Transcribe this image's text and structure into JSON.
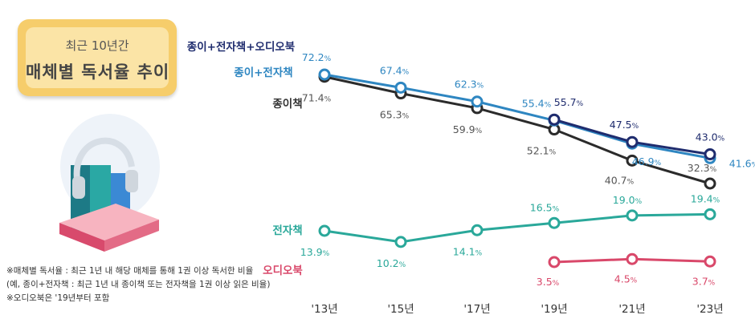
{
  "title": {
    "line1": "최근 10년간",
    "line2": "매체별 독서율 추이"
  },
  "footnotes": [
    "※매체별 독서율 : 최근 1년 내 해당 매체를 통해 1권 이상 독서한 비율",
    "(예, 종이+전자책 : 최근 1년 내 종이책 또는 전자책을 1권 이상 읽은 비율)",
    "※오디오북은 '19년부터 포함"
  ],
  "colors": {
    "paper_ebook_audio": "#1f2c6e",
    "paper_ebook": "#2e86c1",
    "paper": "#2b2b2b",
    "ebook": "#2aa89a",
    "audiobook": "#d9486a"
  },
  "chart_data": {
    "type": "line",
    "title": "매체별 독서율 추이",
    "categories": [
      "'13년",
      "'15년",
      "'17년",
      "'19년",
      "'21년",
      "'23년"
    ],
    "unit": "%",
    "series": [
      {
        "name": "종이+전자책+오디오북",
        "key": "paper_ebook_audio",
        "values": [
          null,
          null,
          null,
          55.7,
          47.5,
          43.0
        ],
        "labels": [
          "",
          "",
          "",
          "55.7",
          "47.5",
          "43.0"
        ]
      },
      {
        "name": "종이+전자책",
        "key": "paper_ebook",
        "values": [
          72.2,
          67.4,
          62.3,
          55.4,
          46.9,
          41.6
        ],
        "labels": [
          "72.2",
          "67.4",
          "62.3",
          "55.4",
          "46.9",
          "41.6"
        ]
      },
      {
        "name": "종이책",
        "key": "paper",
        "values": [
          71.4,
          65.3,
          59.9,
          52.1,
          40.7,
          32.3
        ],
        "labels": [
          "71.4",
          "65.3",
          "59.9",
          "52.1",
          "40.7",
          "32.3"
        ]
      },
      {
        "name": "전자책",
        "key": "ebook",
        "values": [
          13.9,
          10.2,
          14.1,
          16.5,
          19.0,
          19.4
        ],
        "labels": [
          "13.9",
          "10.2",
          "14.1",
          "16.5",
          "19.0",
          "19.4"
        ]
      },
      {
        "name": "오디오북",
        "key": "audiobook",
        "values": [
          null,
          null,
          null,
          3.5,
          4.5,
          3.7
        ],
        "labels": [
          "",
          "",
          "",
          "3.5",
          "4.5",
          "3.7"
        ]
      }
    ]
  }
}
